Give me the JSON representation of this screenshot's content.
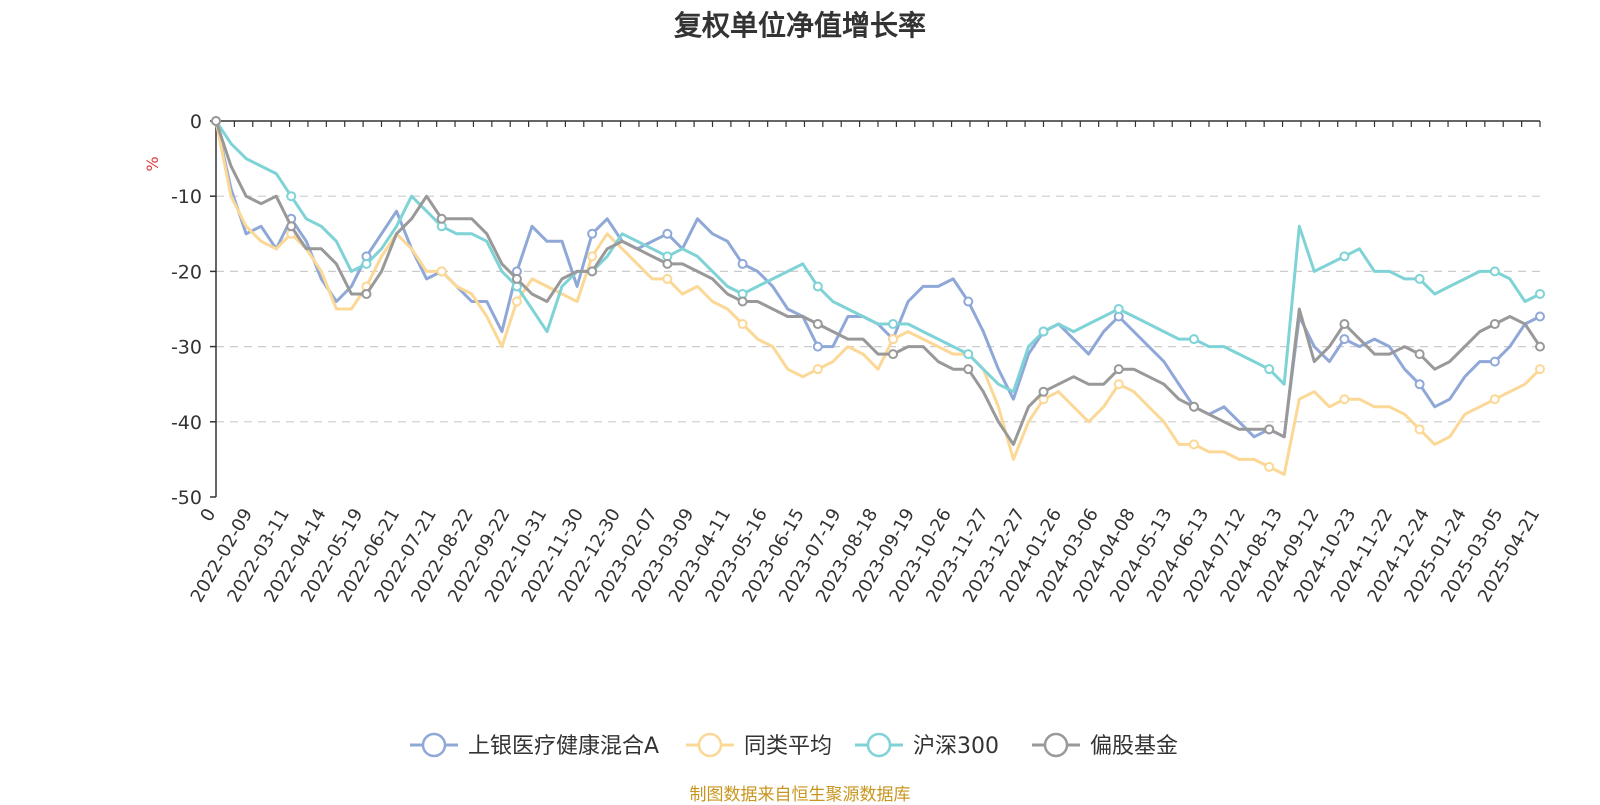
{
  "chart_data": {
    "type": "line",
    "title": "复权单位净值增长率",
    "ylabel": "%",
    "ylim": [
      -50,
      0
    ],
    "yticks": [
      0,
      -10,
      -20,
      -30,
      -40,
      -50
    ],
    "xticks": [
      "0",
      "2022-02-09",
      "2022-03-11",
      "2022-04-14",
      "2022-05-19",
      "2022-06-21",
      "2022-07-21",
      "2022-08-22",
      "2022-09-22",
      "2022-10-31",
      "2022-11-30",
      "2022-12-30",
      "2023-02-07",
      "2023-03-09",
      "2023-04-11",
      "2023-05-16",
      "2023-06-15",
      "2023-07-19",
      "2023-08-18",
      "2023-09-19",
      "2023-10-26",
      "2023-11-27",
      "2023-12-27",
      "2024-01-26",
      "2024-03-06",
      "2024-04-08",
      "2024-05-13",
      "2024-06-13",
      "2024-07-12",
      "2024-08-13",
      "2024-09-12",
      "2024-10-23",
      "2024-11-22",
      "2024-12-24",
      "2025-01-24",
      "2025-03-05",
      "2025-04-21"
    ],
    "grid": true,
    "legend_position": "bottom",
    "series": [
      {
        "name": "上银医疗健康混合A",
        "color": "#8fa8d8",
        "values": [
          0,
          -9,
          -15,
          -14,
          -17,
          -13,
          -16,
          -21,
          -24,
          -22,
          -18,
          -15,
          -12,
          -17,
          -21,
          -20,
          -22,
          -24,
          -24,
          -28,
          -20,
          -14,
          -16,
          -16,
          -22,
          -15,
          -13,
          -16,
          -17,
          -16,
          -15,
          -17,
          -13,
          -15,
          -16,
          -19,
          -20,
          -22,
          -25,
          -26,
          -30,
          -30,
          -26,
          -26,
          -27,
          -29,
          -24,
          -22,
          -22,
          -21,
          -24,
          -28,
          -33,
          -37,
          -31,
          -28,
          -27,
          -29,
          -31,
          -28,
          -26,
          -28,
          -30,
          -32,
          -35,
          -38,
          -39,
          -38,
          -40,
          -42,
          -41,
          -42,
          -26,
          -30,
          -32,
          -29,
          -30,
          -29,
          -30,
          -33,
          -35,
          -38,
          -37,
          -34,
          -32,
          -32,
          -30,
          -27,
          -26
        ]
      },
      {
        "name": "同类平均",
        "color": "#fcd897",
        "values": [
          0,
          -10,
          -14,
          -16,
          -17,
          -15,
          -17,
          -20,
          -25,
          -25,
          -22,
          -18,
          -15,
          -17,
          -20,
          -20,
          -22,
          -23,
          -26,
          -30,
          -24,
          -21,
          -22,
          -23,
          -24,
          -18,
          -15,
          -17,
          -19,
          -21,
          -21,
          -23,
          -22,
          -24,
          -25,
          -27,
          -29,
          -30,
          -33,
          -34,
          -33,
          -32,
          -30,
          -31,
          -33,
          -29,
          -28,
          -29,
          -30,
          -31,
          -31,
          -33,
          -38,
          -45,
          -40,
          -37,
          -36,
          -38,
          -40,
          -38,
          -35,
          -36,
          -38,
          -40,
          -43,
          -43,
          -44,
          -44,
          -45,
          -45,
          -46,
          -47,
          -37,
          -36,
          -38,
          -37,
          -37,
          -38,
          -38,
          -39,
          -41,
          -43,
          -42,
          -39,
          -38,
          -37,
          -36,
          -35,
          -33
        ]
      },
      {
        "name": "沪深300",
        "color": "#7fd3d6",
        "values": [
          0,
          -3,
          -5,
          -6,
          -7,
          -10,
          -13,
          -14,
          -16,
          -20,
          -19,
          -17,
          -14,
          -10,
          -12,
          -14,
          -15,
          -15,
          -16,
          -20,
          -22,
          -25,
          -28,
          -22,
          -20,
          -20,
          -18,
          -15,
          -16,
          -17,
          -18,
          -17,
          -18,
          -20,
          -22,
          -23,
          -22,
          -21,
          -20,
          -19,
          -22,
          -24,
          -25,
          -26,
          -27,
          -27,
          -27,
          -28,
          -29,
          -30,
          -31,
          -33,
          -35,
          -36,
          -30,
          -28,
          -27,
          -28,
          -27,
          -26,
          -25,
          -26,
          -27,
          -28,
          -29,
          -29,
          -30,
          -30,
          -31,
          -32,
          -33,
          -35,
          -14,
          -20,
          -19,
          -18,
          -17,
          -20,
          -20,
          -21,
          -21,
          -23,
          -22,
          -21,
          -20,
          -20,
          -21,
          -24,
          -23
        ]
      },
      {
        "name": "偏股基金",
        "color": "#999999",
        "values": [
          0,
          -6,
          -10,
          -11,
          -10,
          -14,
          -17,
          -17,
          -19,
          -23,
          -23,
          -20,
          -15,
          -13,
          -10,
          -13,
          -13,
          -13,
          -15,
          -19,
          -21,
          -23,
          -24,
          -21,
          -20,
          -20,
          -17,
          -16,
          -17,
          -18,
          -19,
          -19,
          -20,
          -21,
          -23,
          -24,
          -24,
          -25,
          -26,
          -26,
          -27,
          -28,
          -29,
          -29,
          -31,
          -31,
          -30,
          -30,
          -32,
          -33,
          -33,
          -36,
          -40,
          -43,
          -38,
          -36,
          -35,
          -34,
          -35,
          -35,
          -33,
          -33,
          -34,
          -35,
          -37,
          -38,
          -39,
          -40,
          -41,
          -41,
          -41,
          -42,
          -25,
          -32,
          -30,
          -27,
          -29,
          -31,
          -31,
          -30,
          -31,
          -33,
          -32,
          -30,
          -28,
          -27,
          -26,
          -27,
          -30
        ]
      }
    ]
  },
  "source_note": "制图数据来自恒生聚源数据库"
}
